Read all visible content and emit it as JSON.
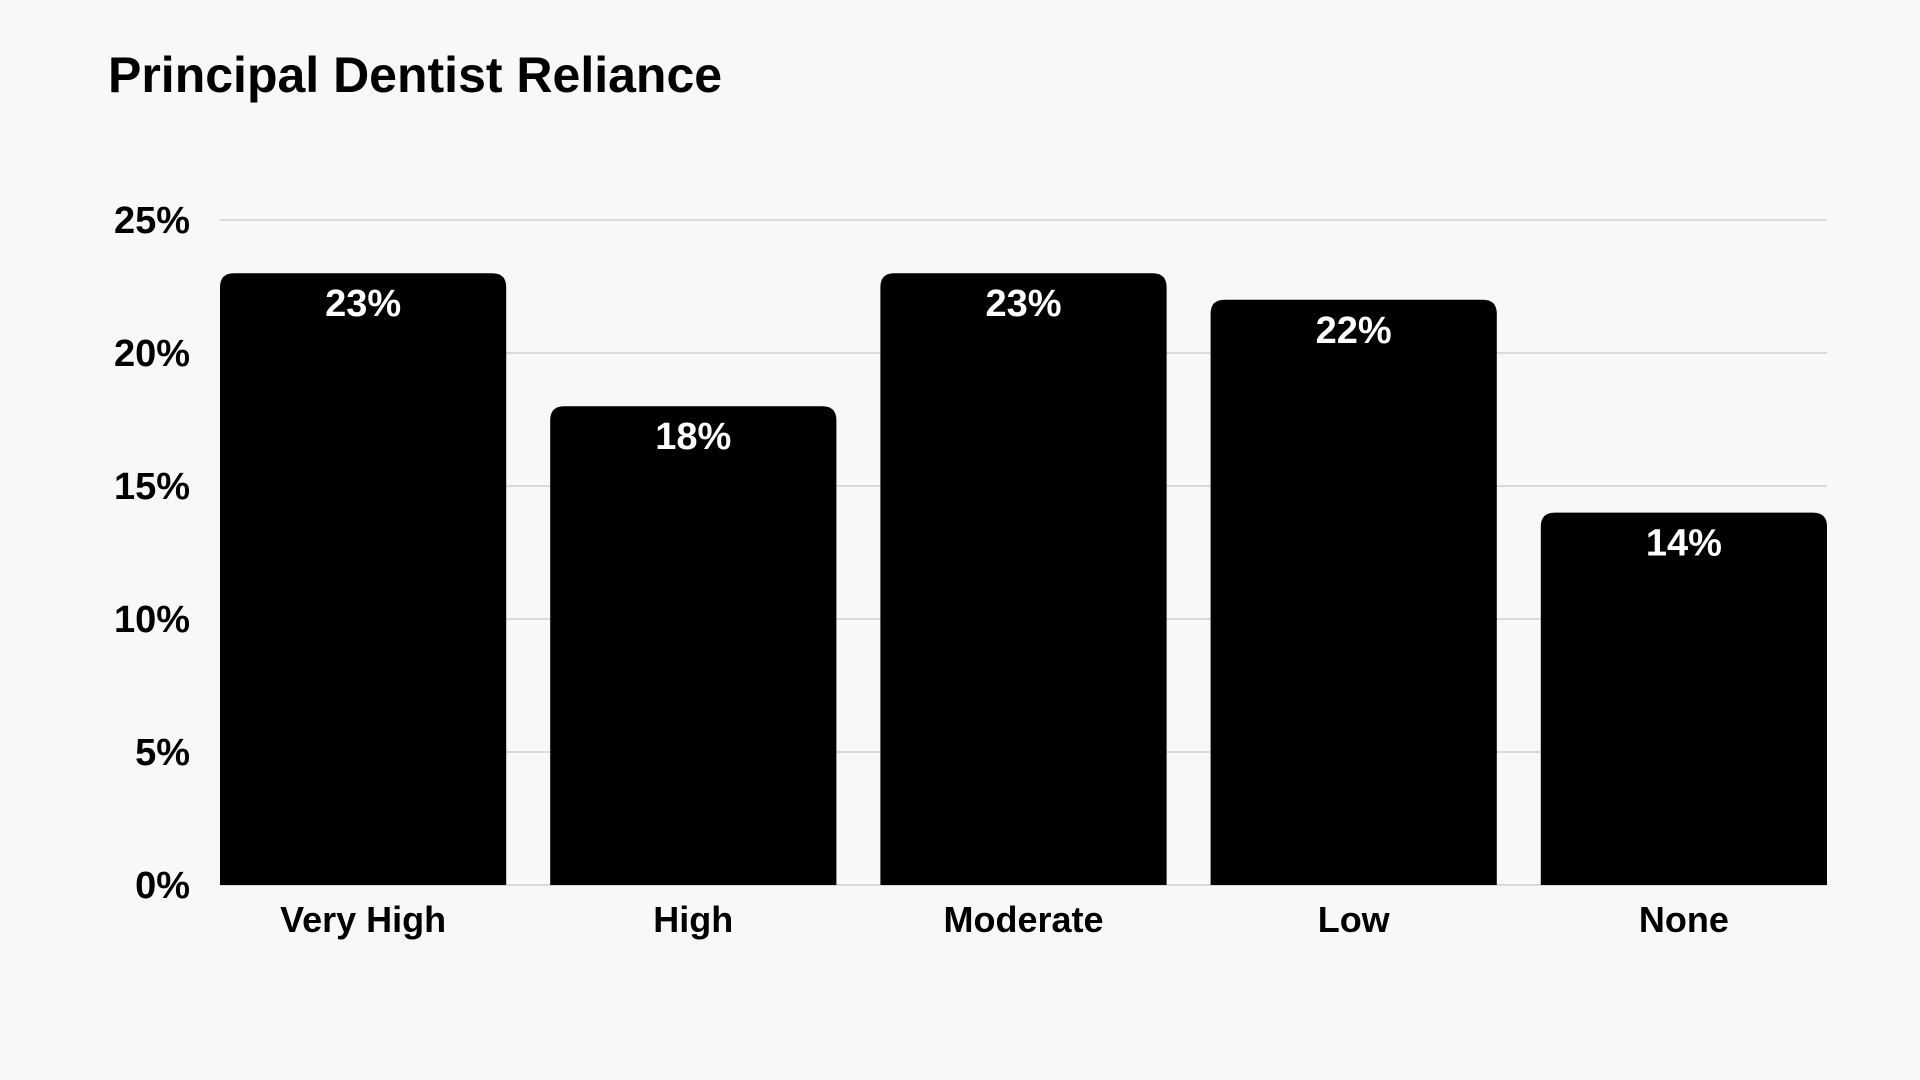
{
  "chart_data": {
    "type": "bar",
    "title": "Principal Dentist Reliance",
    "xlabel": "",
    "ylabel": "",
    "categories": [
      "Very High",
      "High",
      "Moderate",
      "Low",
      "None"
    ],
    "values": [
      23,
      18,
      23,
      22,
      14
    ],
    "value_labels": [
      "23%",
      "18%",
      "23%",
      "22%",
      "14%"
    ],
    "ylim": [
      0,
      25
    ],
    "yticks": [
      0,
      5,
      10,
      15,
      20,
      25
    ],
    "ytick_labels": [
      "0%",
      "5%",
      "10%",
      "15%",
      "20%",
      "25%"
    ],
    "grid": true,
    "legend": "none",
    "colors": {
      "bar": "#000000",
      "label_on_bar": "#ffffff",
      "grid": "#cfcfcf",
      "background": "#f8f8f8"
    }
  }
}
